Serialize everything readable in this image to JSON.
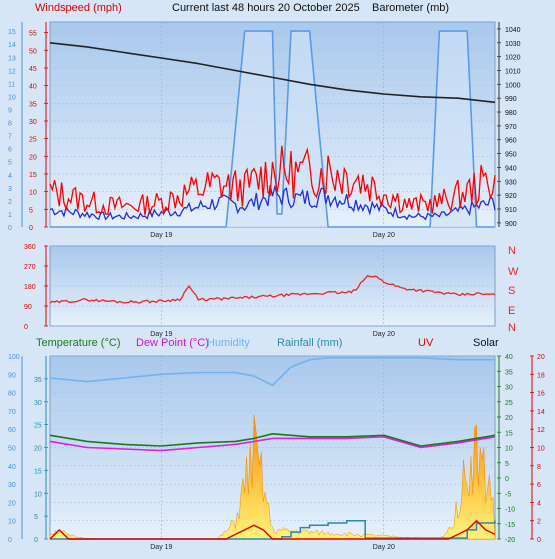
{
  "header": {
    "windspeed_label": "Windspeed (mph)",
    "title": "Current last 48 hours 20 October 2025",
    "barometer_label": "Barometer (mb)"
  },
  "legend": {
    "temperature": "Temperature (°C)",
    "dew_point": "Dew Point (°C)",
    "humidity": "Humidity",
    "rainfall": "Rainfall (mm)",
    "uv": "UV",
    "solar": "Solar"
  },
  "colors": {
    "panel_bg": "#b9d3f0",
    "wind_gust": "#ff0000",
    "wind_avg": "#1f2fd8",
    "barometer": "#222222",
    "direction": "#ee2222",
    "temperature": "#1a7a1a",
    "dew_point": "#e020e0",
    "humidity": "#6fb3f0",
    "rainfall": "#2a8aa8",
    "uv": "#dd0000",
    "solar": "#ffb000",
    "windspeed_axis": "#dd0000",
    "left_scale_axis": "#4a90d9"
  },
  "chart_data": [
    {
      "type": "line",
      "panel": "wind-barometer",
      "x_tick_labels": [
        "Day 19",
        "Day 20"
      ],
      "left_axis_ticks": [
        0,
        1,
        2,
        3,
        4,
        5,
        6,
        7,
        8,
        9,
        10,
        11,
        12,
        13,
        14,
        15
      ],
      "windspeed_axis": {
        "label": "Windspeed (mph)",
        "ylim": [
          0,
          58
        ],
        "ticks": [
          0,
          5,
          10,
          15,
          20,
          25,
          30,
          35,
          40,
          45,
          50,
          55
        ]
      },
      "barometer_axis": {
        "label": "Barometer (mb)",
        "ylim": [
          897,
          1045
        ],
        "ticks": [
          900,
          910,
          920,
          930,
          940,
          950,
          960,
          970,
          980,
          990,
          1000,
          1010,
          1020,
          1030,
          1040
        ]
      },
      "series": [
        {
          "name": "Barometer",
          "axis": "barometer",
          "x": [
            0,
            4,
            8,
            12,
            16,
            20,
            24,
            28,
            32,
            36,
            40,
            44,
            48
          ],
          "y": [
            1030,
            1027,
            1023,
            1019,
            1015,
            1010,
            1005,
            1000,
            996,
            993,
            991,
            990,
            987
          ]
        },
        {
          "name": "Wind gust",
          "axis": "windspeed",
          "x": [
            0,
            3,
            6,
            9,
            12,
            15,
            18,
            21,
            24,
            27,
            30,
            33,
            36,
            39,
            42,
            45,
            48
          ],
          "y": [
            10,
            8,
            6,
            6,
            7,
            10,
            12,
            11,
            16,
            15,
            16,
            14,
            10,
            6,
            7,
            10,
            14
          ]
        },
        {
          "name": "Wind average",
          "axis": "windspeed",
          "x": [
            0,
            3,
            6,
            9,
            12,
            15,
            18,
            21,
            24,
            27,
            30,
            33,
            36,
            39,
            42,
            45,
            48
          ],
          "y": [
            5,
            4,
            3,
            3,
            4,
            5,
            7,
            6,
            9,
            8,
            9,
            7,
            5,
            3,
            3,
            5,
            7
          ]
        },
        {
          "name": "Left scale series",
          "axis": "left",
          "x": [
            0,
            3,
            6,
            9,
            12,
            14,
            15,
            16,
            17,
            18,
            19,
            21,
            22,
            23,
            24,
            24.5,
            25,
            26,
            27,
            28,
            30,
            33,
            36,
            39,
            41,
            42,
            43,
            44,
            45,
            46,
            47,
            48
          ],
          "y": [
            0,
            0,
            0,
            0,
            0,
            0,
            0,
            0,
            0,
            0,
            0,
            15,
            15,
            15,
            15,
            1,
            1,
            15,
            15,
            15,
            0,
            0,
            0,
            0,
            0,
            15,
            15,
            15,
            15,
            0,
            0,
            0
          ]
        }
      ]
    },
    {
      "type": "line",
      "panel": "wind-direction",
      "x_tick_labels": [
        "Day 19",
        "Day 20"
      ],
      "left_axis": {
        "ylim": [
          0,
          360
        ],
        "ticks": [
          0,
          90,
          180,
          270,
          360
        ]
      },
      "right_axis_labels": [
        "N",
        "W",
        "S",
        "E",
        "N"
      ],
      "series": [
        {
          "name": "Wind direction",
          "x": [
            0,
            4,
            8,
            12,
            14,
            15,
            16,
            20,
            24,
            28,
            30,
            32,
            33,
            34,
            35,
            36,
            38,
            40,
            42,
            44,
            46,
            48
          ],
          "y": [
            105,
            118,
            108,
            112,
            120,
            180,
            118,
            125,
            135,
            145,
            150,
            150,
            160,
            218,
            225,
            200,
            170,
            160,
            150,
            140,
            145,
            140
          ]
        }
      ]
    },
    {
      "type": "line",
      "panel": "temperature-rain-solar",
      "x_tick_labels": [
        "Day 19",
        "Day 20"
      ],
      "humidity_axis": {
        "ylim": [
          0,
          100
        ],
        "ticks": [
          0,
          10,
          20,
          30,
          40,
          50,
          60,
          70,
          80,
          90,
          100
        ]
      },
      "rainfall_axis": {
        "ylim": [
          0,
          40
        ],
        "ticks": [
          0,
          5,
          10,
          15,
          20,
          25,
          30,
          35
        ]
      },
      "temperature_axis": {
        "ylim": [
          -20,
          40
        ],
        "ticks": [
          -20,
          -15,
          -10,
          -5,
          0,
          5,
          10,
          15,
          20,
          25,
          30,
          35,
          40
        ]
      },
      "uv_axis": {
        "ylim": [
          0,
          20
        ],
        "ticks": [
          0,
          2,
          4,
          6,
          8,
          10,
          12,
          14,
          16,
          18,
          20
        ]
      },
      "series": [
        {
          "name": "Humidity",
          "axis": "humidity",
          "x": [
            0,
            4,
            8,
            12,
            16,
            20,
            22,
            24,
            26,
            28,
            30,
            32,
            36,
            40,
            44,
            48
          ],
          "y": [
            88,
            86,
            88,
            90,
            91,
            91,
            89,
            84,
            94,
            98,
            99,
            99,
            99,
            99,
            98,
            98
          ]
        },
        {
          "name": "Temperature",
          "axis": "temperature",
          "x": [
            0,
            4,
            8,
            12,
            16,
            20,
            22,
            24,
            28,
            32,
            36,
            40,
            44,
            48
          ],
          "y": [
            14,
            12,
            11,
            10.5,
            11.5,
            12,
            13,
            14.5,
            13.5,
            13.5,
            14,
            10.5,
            12,
            14
          ]
        },
        {
          "name": "Dew Point",
          "axis": "temperature",
          "x": [
            0,
            4,
            8,
            12,
            16,
            20,
            22,
            24,
            28,
            32,
            36,
            40,
            44,
            48
          ],
          "y": [
            12,
            10,
            9.5,
            9,
            10,
            11,
            12,
            13,
            13,
            13,
            13.5,
            10,
            11.5,
            13.5
          ]
        },
        {
          "name": "Rainfall",
          "axis": "rainfall",
          "x": [
            0,
            24,
            25,
            26,
            27,
            28,
            30,
            32,
            33,
            34,
            44,
            45,
            46,
            48
          ],
          "y": [
            0,
            0,
            0.5,
            1.5,
            2.5,
            3,
            3.5,
            4,
            4,
            0.2,
            0.2,
            2,
            3.5,
            4
          ]
        },
        {
          "name": "Solar",
          "axis": "solar",
          "x": [
            0,
            1,
            2,
            3,
            4,
            5,
            18,
            19,
            20,
            21,
            22,
            23,
            24,
            42,
            43,
            44,
            45,
            46,
            47,
            48
          ],
          "y": [
            3,
            5,
            2,
            1,
            0.5,
            0,
            0,
            4,
            10,
            30,
            50,
            30,
            5,
            0,
            5,
            20,
            40,
            50,
            35,
            20
          ]
        },
        {
          "name": "UV",
          "axis": "uv",
          "x": [
            0,
            1,
            2,
            3,
            4,
            5,
            18,
            19,
            20,
            21,
            22,
            23,
            24,
            42,
            43,
            44,
            45,
            46,
            47,
            48
          ],
          "y": [
            0,
            1,
            0,
            0,
            0,
            0,
            0,
            0,
            0.5,
            1,
            1.5,
            1,
            0,
            0,
            0,
            0.5,
            1,
            2,
            1,
            0.5
          ]
        }
      ]
    }
  ]
}
